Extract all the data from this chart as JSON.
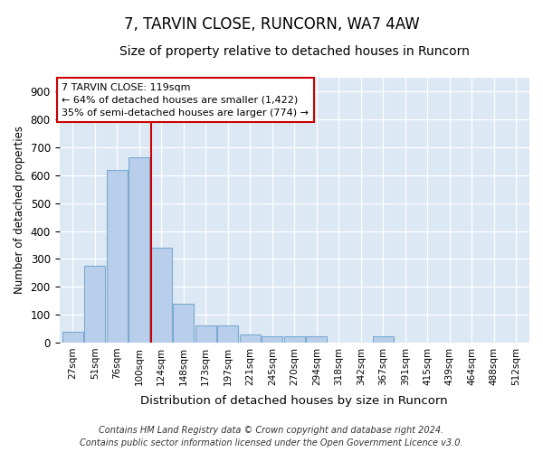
{
  "title1": "7, TARVIN CLOSE, RUNCORN, WA7 4AW",
  "title2": "Size of property relative to detached houses in Runcorn",
  "xlabel": "Distribution of detached houses by size in Runcorn",
  "ylabel": "Number of detached properties",
  "bin_labels": [
    "27sqm",
    "51sqm",
    "76sqm",
    "100sqm",
    "124sqm",
    "148sqm",
    "173sqm",
    "197sqm",
    "221sqm",
    "245sqm",
    "270sqm",
    "294sqm",
    "318sqm",
    "342sqm",
    "367sqm",
    "391sqm",
    "415sqm",
    "439sqm",
    "464sqm",
    "488sqm",
    "512sqm"
  ],
  "bar_values": [
    40,
    275,
    620,
    665,
    340,
    140,
    60,
    60,
    28,
    22,
    22,
    22,
    0,
    0,
    22,
    0,
    0,
    0,
    0,
    0,
    0
  ],
  "bar_color": "#b8ceeb",
  "bar_edge_color": "#7aaad0",
  "vline_color": "#cc0000",
  "annotation_line1": "7 TARVIN CLOSE: 119sqm",
  "annotation_line2": "← 64% of detached houses are smaller (1,422)",
  "annotation_line3": "35% of semi-detached houses are larger (774) →",
  "annotation_box_color": "#ffffff",
  "annotation_border_color": "#cc0000",
  "ylim": [
    0,
    950
  ],
  "yticks": [
    0,
    100,
    200,
    300,
    400,
    500,
    600,
    700,
    800,
    900
  ],
  "plot_bg_color": "#dde8f5",
  "fig_bg_color": "#ffffff",
  "footer": "Contains HM Land Registry data © Crown copyright and database right 2024.\nContains public sector information licensed under the Open Government Licence v3.0.",
  "title1_fontsize": 12,
  "title2_fontsize": 10
}
